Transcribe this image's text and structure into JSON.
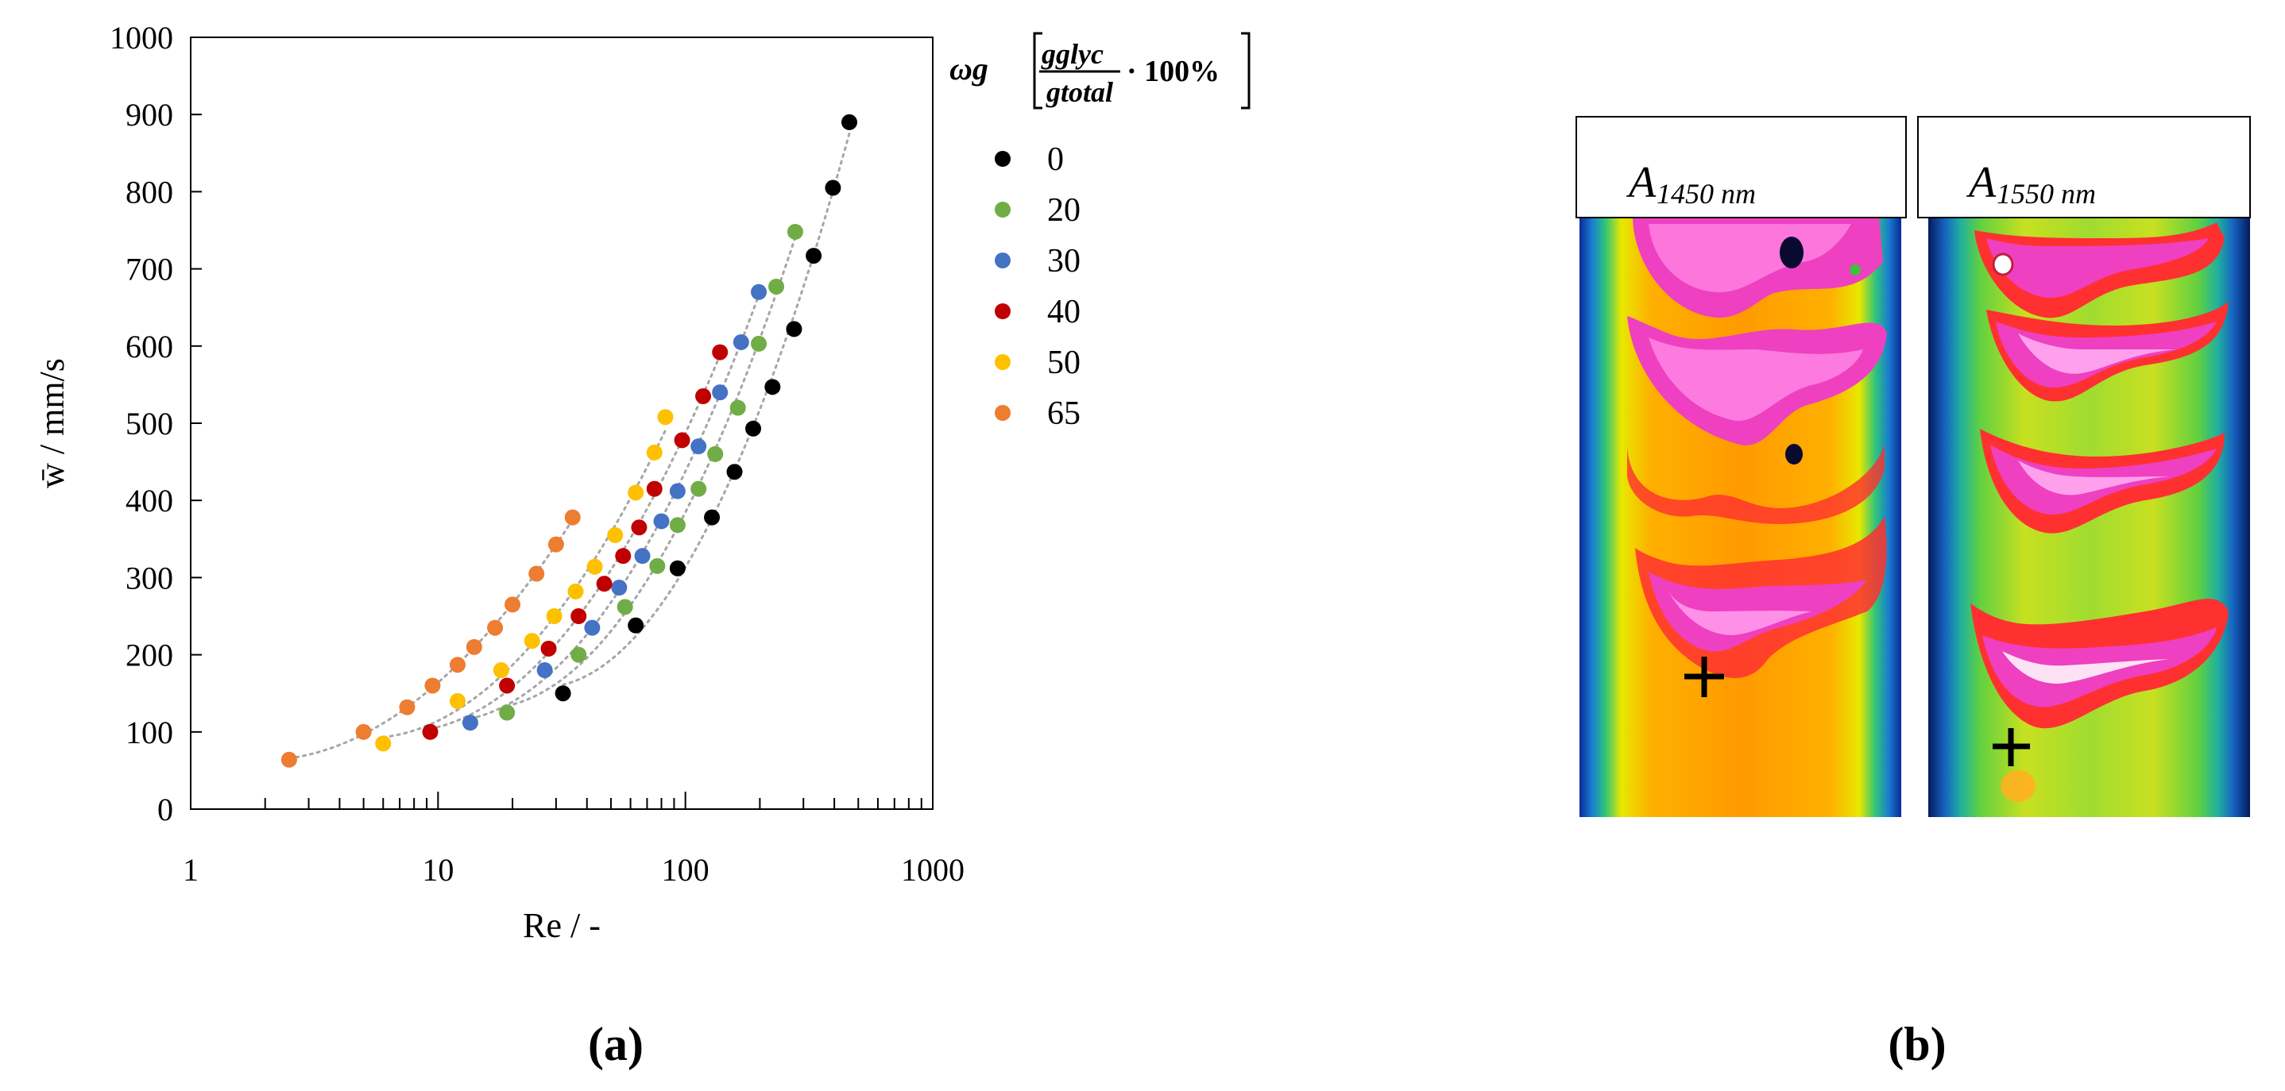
{
  "chart_data": {
    "type": "scatter",
    "xscale": "log",
    "xlim": [
      1,
      1000
    ],
    "ylim": [
      0,
      1000
    ],
    "xlabel": "Re / -",
    "ylabel": "w̄ / mm/s",
    "x_ticks": [
      "1",
      "10",
      "100",
      "1000"
    ],
    "y_ticks": [
      "0",
      "100",
      "200",
      "300",
      "400",
      "500",
      "600",
      "700",
      "800",
      "900",
      "1000"
    ],
    "legend_title_symbol": "ωg",
    "legend_title_numerator": "gglyc",
    "legend_title_denominator": "gtotal",
    "legend_title_suffix": "· 100%",
    "series": [
      {
        "name": "0",
        "color": "#000000",
        "x": [
          32,
          63,
          93,
          128,
          158,
          188,
          225,
          275,
          330,
          395,
          460
        ],
        "y": [
          150,
          238,
          312,
          378,
          437,
          493,
          547,
          622,
          717,
          805,
          890
        ]
      },
      {
        "name": "20",
        "color": "#70ad47",
        "x": [
          19,
          37,
          57,
          77,
          93,
          113,
          132,
          163,
          198,
          233,
          278
        ],
        "y": [
          125,
          200,
          262,
          315,
          368,
          415,
          460,
          520,
          603,
          677,
          748
        ]
      },
      {
        "name": "30",
        "color": "#4472c4",
        "x": [
          13.5,
          27,
          42,
          54,
          67,
          80,
          93,
          113,
          138,
          168,
          198
        ],
        "y": [
          112,
          180,
          235,
          287,
          328,
          373,
          412,
          470,
          540,
          605,
          670
        ]
      },
      {
        "name": "40",
        "color": "#c00000",
        "x": [
          9.3,
          19,
          28,
          37,
          47,
          56,
          65,
          75,
          97,
          118,
          138
        ],
        "y": [
          100,
          160,
          208,
          250,
          292,
          328,
          365,
          415,
          478,
          535,
          592
        ]
      },
      {
        "name": "50",
        "color": "#ffc000",
        "x": [
          6,
          12,
          18,
          24,
          29.5,
          36,
          43,
          52,
          63,
          75,
          83
        ],
        "y": [
          85,
          140,
          180,
          218,
          250,
          282,
          314,
          355,
          410,
          462,
          508
        ]
      },
      {
        "name": "65",
        "color": "#ed7d31",
        "x": [
          2.5,
          5,
          7.5,
          9.5,
          12,
          14,
          17,
          20,
          25,
          30,
          35
        ],
        "y": [
          64,
          100,
          132,
          160,
          187,
          210,
          235,
          265,
          305,
          343,
          378
        ]
      }
    ]
  },
  "panel_a": {
    "label": "(a)"
  },
  "panel_b": {
    "label": "(b)",
    "image_left": {
      "label": "A",
      "subscript": "1450 nm"
    },
    "image_right": {
      "label": "A",
      "subscript": "1550 nm"
    }
  }
}
